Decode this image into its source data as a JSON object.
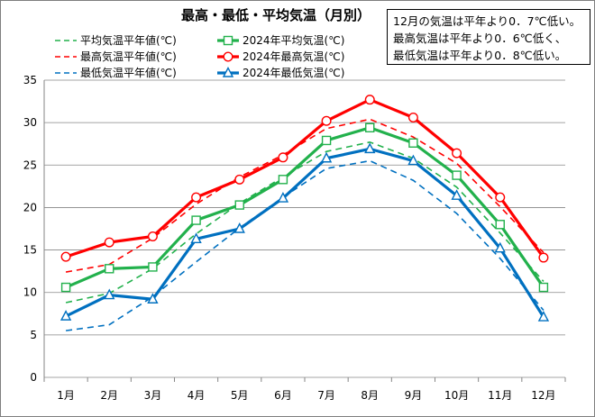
{
  "chart_data": {
    "type": "line",
    "title": "最高・最低・平均気温（月別）",
    "annotation": [
      "12月の気温は平年より0．7℃低い。",
      "最高気温は平年より0．6℃低く、",
      "最低気温は平年より0．8℃低い。"
    ],
    "categories": [
      "1月",
      "2月",
      "3月",
      "4月",
      "5月",
      "6月",
      "7月",
      "8月",
      "9月",
      "10月",
      "11月",
      "12月"
    ],
    "ylim": [
      0,
      35
    ],
    "yticks": [
      0,
      5,
      10,
      15,
      20,
      25,
      30,
      35
    ],
    "grid": true,
    "legend_placement": "top-left",
    "series": [
      {
        "name": "平均気温平年値(℃)",
        "style": "dashed",
        "marker": "none",
        "color": "#22b14c",
        "values": [
          8.8,
          9.9,
          12.8,
          16.9,
          20.5,
          23.6,
          26.6,
          27.7,
          25.8,
          22.4,
          17.0,
          11.3
        ]
      },
      {
        "name": "2024年平均気温(℃)",
        "style": "solid",
        "marker": "square",
        "color": "#22b14c",
        "values": [
          10.6,
          12.8,
          13.0,
          18.5,
          20.3,
          23.3,
          27.9,
          29.4,
          27.6,
          23.8,
          18.0,
          10.6
        ]
      },
      {
        "name": "最高気温平年値(℃)",
        "style": "dashed",
        "marker": "none",
        "color": "#ff0000",
        "values": [
          12.4,
          13.3,
          16.4,
          20.4,
          23.6,
          26.2,
          29.3,
          30.4,
          28.3,
          25.2,
          20.1,
          14.7
        ]
      },
      {
        "name": "2024年最高気温(℃)",
        "style": "solid",
        "marker": "circle",
        "color": "#ff0000",
        "values": [
          14.2,
          15.9,
          16.6,
          21.2,
          23.3,
          25.9,
          30.2,
          32.7,
          30.6,
          26.4,
          21.2,
          14.1
        ]
      },
      {
        "name": "最低気温平年値(℃)",
        "style": "dashed",
        "marker": "none",
        "color": "#0070c0",
        "values": [
          5.5,
          6.2,
          9.5,
          13.6,
          17.6,
          21.2,
          24.6,
          25.5,
          23.2,
          19.3,
          14.0,
          7.9
        ]
      },
      {
        "name": "2024年最低気温(℃)",
        "style": "solid",
        "marker": "triangle",
        "color": "#0070c0",
        "values": [
          7.2,
          9.7,
          9.2,
          16.3,
          17.5,
          21.1,
          25.8,
          26.9,
          25.5,
          21.4,
          15.2,
          7.1
        ]
      }
    ]
  }
}
